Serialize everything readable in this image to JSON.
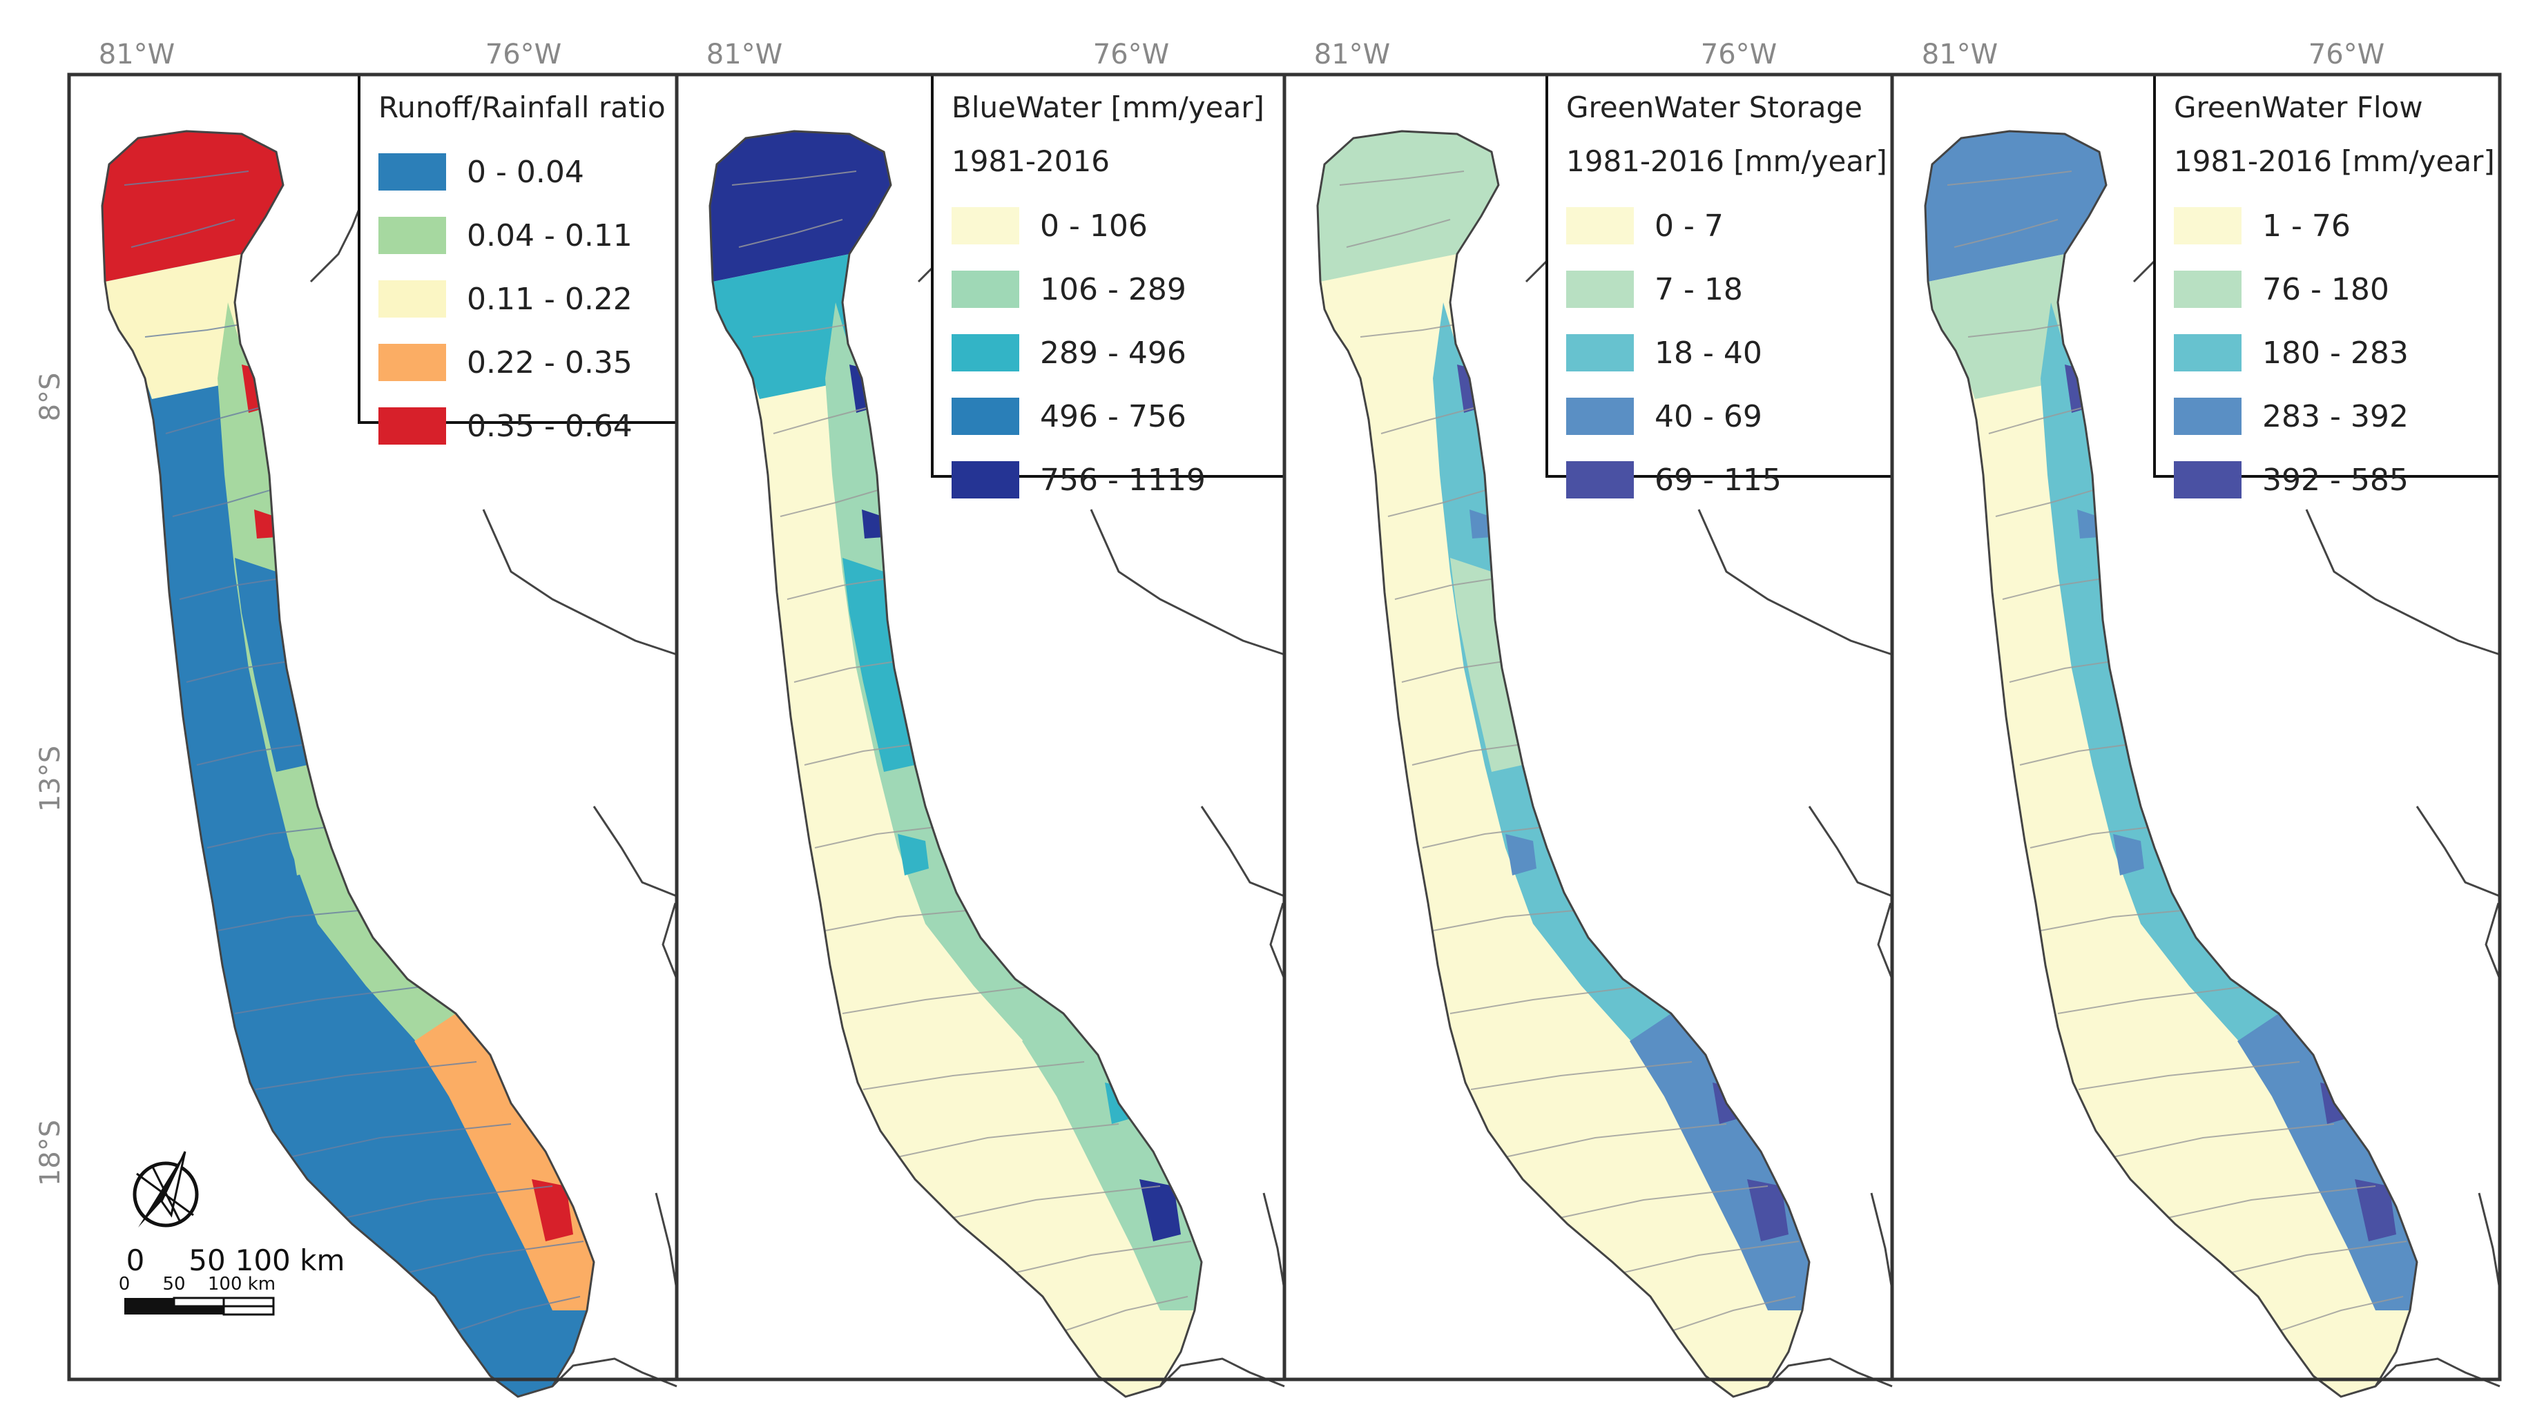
{
  "axes": {
    "x_left": "81°W",
    "x_right": "76°W",
    "y_labels": [
      "8°S",
      "13°S",
      "18°S"
    ]
  },
  "maps": [
    {
      "id": "ratio",
      "legend_title": [
        "Runoff/Rainfall ratio"
      ],
      "classes": [
        {
          "label": "0 - 0.04",
          "color": "#2c7fb8"
        },
        {
          "label": "0.04 - 0.11",
          "color": "#a6d8a0"
        },
        {
          "label": "0.11 - 0.22",
          "color": "#fbf6c4"
        },
        {
          "label": "0.22 - 0.35",
          "color": "#fbad64"
        },
        {
          "label": "0.35 - 0.64",
          "color": "#d7202a"
        }
      ]
    },
    {
      "id": "bluewater",
      "legend_title": [
        "BlueWater [mm/year]",
        "1981-2016"
      ],
      "classes": [
        {
          "label": "0 - 106",
          "color": "#fbf9d2"
        },
        {
          "label": "106 - 289",
          "color": "#9fd8b6"
        },
        {
          "label": "289 - 496",
          "color": "#33b4c6"
        },
        {
          "label": "496 - 756",
          "color": "#2a7fb8"
        },
        {
          "label": "756 - 1119",
          "color": "#253494"
        }
      ]
    },
    {
      "id": "greenwater-storage",
      "legend_title": [
        "GreenWater Storage",
        "1981-2016 [mm/year]"
      ],
      "classes": [
        {
          "label": "0 - 7",
          "color": "#fbf9d2"
        },
        {
          "label": "7 - 18",
          "color": "#b8e0c2"
        },
        {
          "label": "18 - 40",
          "color": "#67c2cf"
        },
        {
          "label": "40 - 69",
          "color": "#5a8fc4"
        },
        {
          "label": "69 - 115",
          "color": "#4a51a3"
        }
      ]
    },
    {
      "id": "greenwater-flow",
      "legend_title": [
        "GreenWater Flow",
        "1981-2016 [mm/year]"
      ],
      "classes": [
        {
          "label": "1 - 76",
          "color": "#fbf9d2"
        },
        {
          "label": "76 - 180",
          "color": "#b8e0c2"
        },
        {
          "label": "180 - 283",
          "color": "#67c2cf"
        },
        {
          "label": "283 - 392",
          "color": "#5a8fc4"
        },
        {
          "label": "392 - 585",
          "color": "#4a51a3"
        }
      ]
    }
  ],
  "scale_bar": {
    "main_labels": [
      "0",
      "50",
      "100 km"
    ],
    "small_labels": [
      "0",
      "50",
      "100 km"
    ]
  },
  "north_arrow": {
    "icon": "north-arrow-icon"
  },
  "colors": {
    "frame": "#333333",
    "border": "#444444",
    "river": "#9a9a9a"
  }
}
